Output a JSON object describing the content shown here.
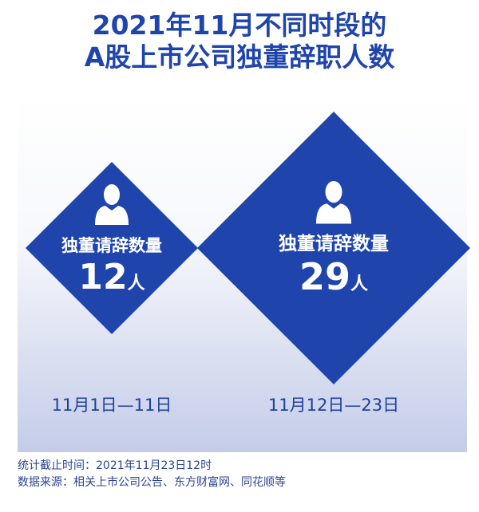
{
  "title_line1": "2021年11月不同时段的",
  "title_line2": "A股上市公司独董辞职人数",
  "chart_data": {
    "type": "diamond-pictogram",
    "categories": [
      "11月1日—11日",
      "11月12日—23日"
    ],
    "values": [
      12,
      29
    ],
    "value_label": "独董请辞数量",
    "unit": "人",
    "color": "#1f45ad",
    "icon": "person-icon"
  },
  "labels": {
    "a_caption": "独董请辞数量",
    "a_value": "12",
    "a_unit": "人",
    "a_period": "11月1日—11日",
    "b_caption": "独董请辞数量",
    "b_value": "29",
    "b_unit": "人",
    "b_period": "11月12日—23日"
  },
  "footer": {
    "cutoff": "统计截止时间：2021年11月23日12时",
    "source": "数据来源：相关上市公司公告、东方财富网、同花顺等"
  }
}
